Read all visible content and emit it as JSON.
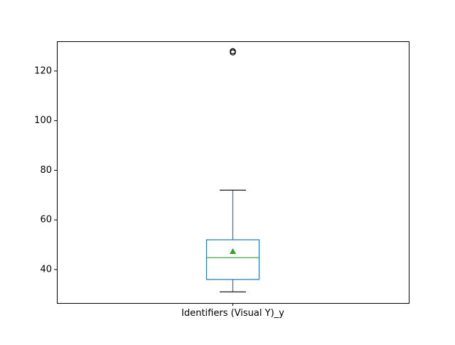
{
  "chart_data": {
    "type": "box",
    "title": "",
    "xlabel": "",
    "ylabel": "",
    "categories": [
      "Identifiers (Visual Y)_y"
    ],
    "ylim": [
      26.5,
      132
    ],
    "yticks": [
      40,
      60,
      80,
      100,
      120
    ],
    "grid": false,
    "show_mean": true,
    "boxes": [
      {
        "label": "Identifiers (Visual Y)_y",
        "whisker_low": 31,
        "q1": 36,
        "median": 44.8,
        "q3": 52,
        "whisker_high": 72,
        "mean": 47.3,
        "outliers": [
          127.5,
          128
        ]
      }
    ],
    "colors": {
      "box": "#1f77b4",
      "median": "#2ca02c",
      "mean": "#2ca02c",
      "whisker_cap": "#000000",
      "outlier": "#000000",
      "axes": "#000000"
    }
  }
}
